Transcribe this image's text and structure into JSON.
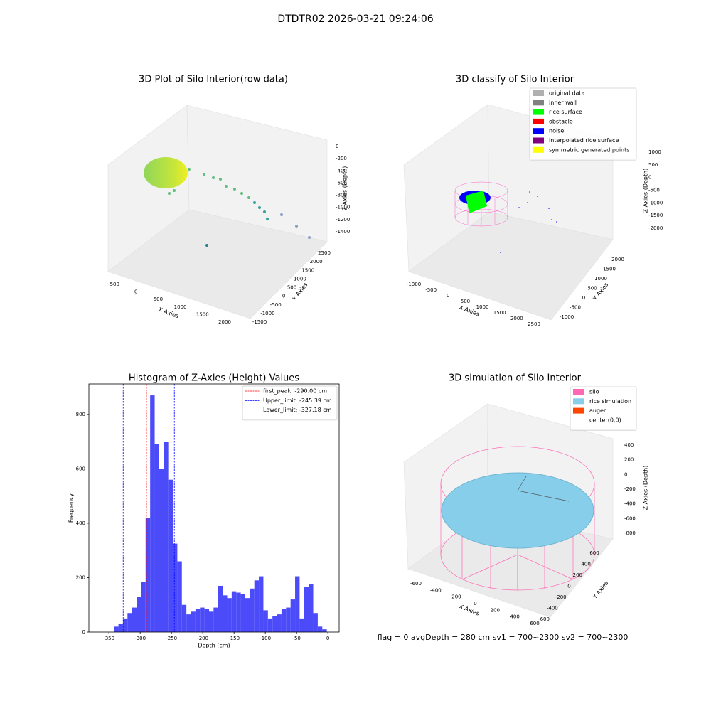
{
  "title": "DTDTR02 2026-03-21 09:24:06",
  "footer": "flag = 0     avgDepth = 280 cm  sv1 = 700~2300  sv2 = 700~2300",
  "chart_data": [
    {
      "type": "scatter3d",
      "title": "3D Plot of Silo Interior(row data)",
      "xlabel": "X Axies",
      "ylabel": "Y Axies",
      "zlabel": "Z Axies (Depth)",
      "xticks": [
        -500,
        0,
        500,
        1000,
        1500,
        2000
      ],
      "yticks": [
        -1500,
        -1000,
        -500,
        0,
        500,
        1000,
        1500,
        2000,
        2500
      ],
      "zticks": [
        -1400,
        -1200,
        -1000,
        -800,
        -600,
        -400,
        -200,
        0
      ]
    },
    {
      "type": "scatter3d",
      "title": "3D classify of Silo Interior",
      "xlabel": "X Axies",
      "ylabel": "Y Axies",
      "zlabel": "Z Axies (Depth)",
      "xticks": [
        -1000,
        -500,
        0,
        500,
        1000,
        1500,
        2000,
        2500
      ],
      "yticks": [
        -1000,
        -500,
        0,
        500,
        1000,
        1500,
        2000
      ],
      "zticks": [
        -2000,
        -1500,
        -1000,
        -500,
        0,
        500,
        1000
      ],
      "legend": [
        {
          "name": "original data",
          "color": "#b0b0b0"
        },
        {
          "name": "inner wall",
          "color": "#808080"
        },
        {
          "name": "rice surface",
          "color": "#00ff00"
        },
        {
          "name": "obstacle",
          "color": "#ff0000"
        },
        {
          "name": "noise",
          "color": "#0000ff"
        },
        {
          "name": "interpolated rice surface",
          "color": "#800080"
        },
        {
          "name": "symmetric generated points",
          "color": "#ffff00"
        }
      ]
    },
    {
      "type": "histogram",
      "title": "Histogram of Z-Axies (Height) Values",
      "xlabel": "Depth (cm)",
      "ylabel": "Frequency",
      "color": "#4b4bfa",
      "bins": [
        -342,
        -334.76,
        -327.52,
        -320.28,
        -313.04,
        -305.8,
        -298.56,
        -291.32,
        -284.08,
        -276.84,
        -269.6,
        -262.36,
        -255.12,
        -247.88,
        -240.64,
        -233.4,
        -226.16,
        -218.92,
        -211.68,
        -204.44,
        -197.2,
        -189.96,
        -182.72,
        -175.48,
        -168.24,
        -161,
        -153.76,
        -146.52,
        -139.28,
        -132.04,
        -124.8,
        -117.56,
        -110.32,
        -103.08,
        -95.84,
        -88.6,
        -81.36,
        -74.12,
        -66.88,
        -59.64,
        -52.4,
        -45.16,
        -37.92,
        -30.68,
        -23.44,
        -16.2,
        -8.96,
        -1.72
      ],
      "values": [
        20,
        30,
        50,
        70,
        90,
        130,
        185,
        420,
        870,
        690,
        600,
        700,
        560,
        325,
        260,
        100,
        65,
        75,
        85,
        90,
        85,
        75,
        90,
        170,
        135,
        125,
        150,
        145,
        140,
        125,
        160,
        190,
        205,
        80,
        50,
        60,
        65,
        85,
        90,
        120,
        205,
        50,
        165,
        175,
        70,
        20,
        10
      ],
      "xlim": [
        -382,
        18
      ],
      "ylim": [
        0,
        912
      ],
      "xticks": [
        -350,
        -300,
        -250,
        -200,
        -150,
        -100,
        -50,
        0
      ],
      "yticks": [
        0,
        200,
        400,
        600,
        800
      ],
      "vlines": [
        {
          "label": "first_peak: -290.00 cm",
          "value": -290,
          "color": "#ff0000"
        },
        {
          "label": "Upper_limit: -245.39 cm",
          "value": -245.39,
          "color": "#0000ff"
        },
        {
          "label": "Lower_limit: -327.18 cm",
          "value": -327.18,
          "color": "#0000ff"
        }
      ]
    },
    {
      "type": "scatter3d",
      "title": "3D simulation of Silo Interior",
      "xlabel": "X Axies",
      "ylabel": "Y Axies",
      "zlabel": "Z Axies (Depth)",
      "xticks": [
        -600,
        -400,
        -200,
        0,
        200,
        400,
        600
      ],
      "yticks": [
        -600,
        -400,
        -200,
        0,
        200,
        400,
        600
      ],
      "zticks": [
        -800,
        -600,
        -400,
        -200,
        0,
        200,
        400
      ],
      "legend": [
        {
          "name": "silo",
          "color": "#ff69b4"
        },
        {
          "name": "rice simulation",
          "color": "#87ceeb"
        },
        {
          "name": "auger",
          "color": "#ff4500"
        },
        {
          "name": "center(0,0)",
          "color": "#ffffff"
        }
      ]
    }
  ]
}
